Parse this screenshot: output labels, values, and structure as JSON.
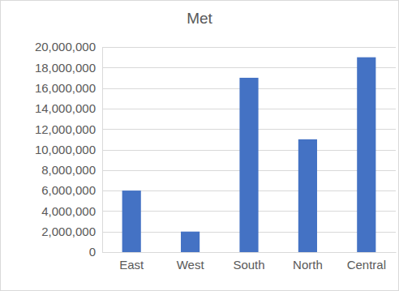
{
  "chart_data": {
    "type": "bar",
    "title": "Met",
    "categories": [
      "East",
      "West",
      "South",
      "North",
      "Central"
    ],
    "values": [
      6000000,
      2000000,
      17000000,
      11000000,
      19000000
    ],
    "color": "#4472c4",
    "ylim": [
      0,
      20000000
    ],
    "yticks": [
      0,
      {
        "value": 2000000,
        "label": "2,000,000"
      },
      {
        "value": 4000000,
        "label": "4,000,000"
      },
      {
        "value": 6000000,
        "label": "6,000,000"
      },
      {
        "value": 8000000,
        "label": "8,000,000"
      },
      {
        "value": 10000000,
        "label": "10,000,000"
      },
      {
        "value": 12000000,
        "label": "12,000,000"
      },
      {
        "value": 14000000,
        "label": "14,000,000"
      },
      {
        "value": 16000000,
        "label": "16,000,000"
      },
      {
        "value": 18000000,
        "label": "18,000,000"
      },
      {
        "value": 20000000,
        "label": "20,000,000"
      }
    ],
    "grid": true
  }
}
